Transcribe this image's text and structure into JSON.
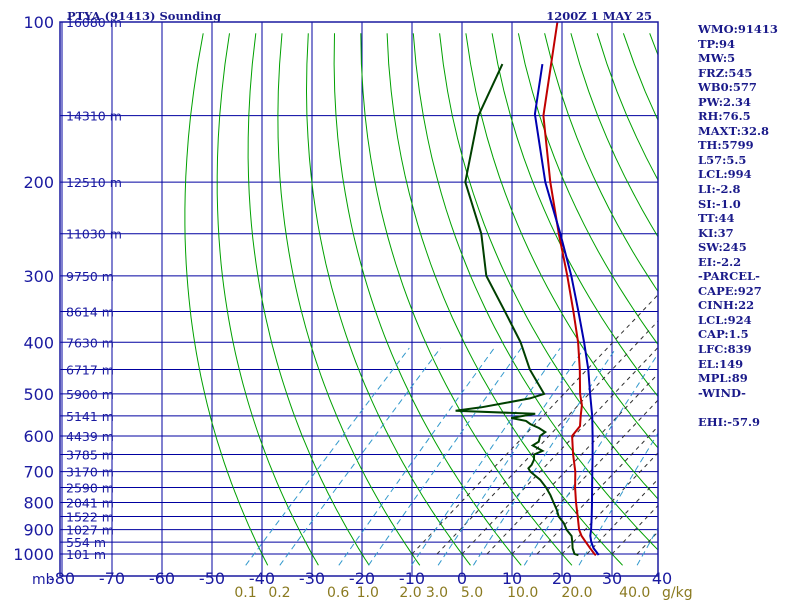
{
  "chart_data": {
    "type": "line",
    "title": "PTYA (91413) Sounding",
    "valid_time": "1200Z  1 MAY 25",
    "colors": {
      "frame": "#1a1aa0",
      "isotherm": "#0000a0",
      "isobar": "#0000a0",
      "dry_adiabat": "#00a000",
      "moist_adiabat": "#303030",
      "mixing_ratio": "#3399cc",
      "temperature": "#c00000",
      "dewpoint": "#004000",
      "parcel": "#0000b0",
      "axis_text": "#1a1aa0",
      "mixing_text": "#8a7a20"
    },
    "pressure_levels": [
      1000,
      900,
      800,
      700,
      600,
      500,
      400,
      300,
      200,
      100
    ],
    "pressure_tick_labels": [
      "1000",
      "900",
      "800",
      "700",
      "600",
      "500",
      "400",
      "300",
      "200",
      "100"
    ],
    "pressure_unit": "mb",
    "temperature_ticks": [
      "-80",
      "-70",
      "-60",
      "-50",
      "-40",
      "-30",
      "-20",
      "-10",
      "0",
      "10",
      "20",
      "30",
      "40"
    ],
    "height_labels": [
      {
        "p": 100,
        "text": "16080 m"
      },
      {
        "p": 150,
        "text": "14310 m"
      },
      {
        "p": 200,
        "text": "12510 m"
      },
      {
        "p": 250,
        "text": "11030 m"
      },
      {
        "p": 300,
        "text": "9750 m"
      },
      {
        "p": 350,
        "text": "8614 m"
      },
      {
        "p": 400,
        "text": "7630 m"
      },
      {
        "p": 450,
        "text": "6717 m"
      },
      {
        "p": 500,
        "text": "5900 m"
      },
      {
        "p": 550,
        "text": "5141 m"
      },
      {
        "p": 600,
        "text": "4439 m"
      },
      {
        "p": 650,
        "text": "3785 m"
      },
      {
        "p": 700,
        "text": "3170 m"
      },
      {
        "p": 750,
        "text": "2590 m"
      },
      {
        "p": 800,
        "text": "2041 m"
      },
      {
        "p": 850,
        "text": "1522 m"
      },
      {
        "p": 900,
        "text": "1027 m"
      },
      {
        "p": 950,
        "text": "554 m"
      },
      {
        "p": 1000,
        "text": "101 m"
      }
    ],
    "mixing_ratio_labels": [
      "0.1",
      "0.2",
      "0.6",
      "1.0",
      "2.0",
      "3.0",
      "5.0",
      "10.0",
      "20.0",
      "40.0"
    ],
    "mixing_ratio_unit": "g/kg",
    "temperature_profile": [
      {
        "p": 1005,
        "t": 27.0
      },
      {
        "p": 1000,
        "t": 26.5
      },
      {
        "p": 975,
        "t": 24.5
      },
      {
        "p": 950,
        "t": 22.5
      },
      {
        "p": 925,
        "t": 20.5
      },
      {
        "p": 900,
        "t": 18.8
      },
      {
        "p": 850,
        "t": 16.0
      },
      {
        "p": 800,
        "t": 13.0
      },
      {
        "p": 750,
        "t": 10.0
      },
      {
        "p": 700,
        "t": 7.0
      },
      {
        "p": 650,
        "t": 3.3
      },
      {
        "p": 600,
        "t": -0.4
      },
      {
        "p": 575,
        "t": -0.7
      },
      {
        "p": 550,
        "t": -2.5
      },
      {
        "p": 525,
        "t": -4.3
      },
      {
        "p": 500,
        "t": -6.8
      },
      {
        "p": 450,
        "t": -11.5
      },
      {
        "p": 400,
        "t": -17.0
      },
      {
        "p": 350,
        "t": -23.8
      },
      {
        "p": 300,
        "t": -31.8
      },
      {
        "p": 250,
        "t": -41.5
      },
      {
        "p": 200,
        "t": -53.0
      },
      {
        "p": 150,
        "t": -67.0
      },
      {
        "p": 100,
        "t": -82.0
      }
    ],
    "dewpoint_profile": [
      {
        "p": 1005,
        "t": 23.5
      },
      {
        "p": 1000,
        "t": 22.5
      },
      {
        "p": 975,
        "t": 21.0
      },
      {
        "p": 950,
        "t": 19.8
      },
      {
        "p": 925,
        "t": 18.5
      },
      {
        "p": 900,
        "t": 16.3
      },
      {
        "p": 875,
        "t": 14.5
      },
      {
        "p": 850,
        "t": 12.2
      },
      {
        "p": 825,
        "t": 10.5
      },
      {
        "p": 800,
        "t": 8.5
      },
      {
        "p": 775,
        "t": 6.5
      },
      {
        "p": 750,
        "t": 4.2
      },
      {
        "p": 725,
        "t": 1.5
      },
      {
        "p": 700,
        "t": -2.0
      },
      {
        "p": 690,
        "t": -3.0
      },
      {
        "p": 680,
        "t": -3.0
      },
      {
        "p": 665,
        "t": -3.5
      },
      {
        "p": 650,
        "t": -4.5
      },
      {
        "p": 640,
        "t": -3.5
      },
      {
        "p": 625,
        "t": -6.5
      },
      {
        "p": 615,
        "t": -6.0
      },
      {
        "p": 600,
        "t": -6.8
      },
      {
        "p": 590,
        "t": -6.5
      },
      {
        "p": 580,
        "t": -8.5
      },
      {
        "p": 570,
        "t": -11.0
      },
      {
        "p": 562,
        "t": -12.5
      },
      {
        "p": 555,
        "t": -16.0
      },
      {
        "p": 545,
        "t": -12.0
      },
      {
        "p": 538,
        "t": -28.5
      },
      {
        "p": 530,
        "t": -24.0
      },
      {
        "p": 520,
        "t": -20.0
      },
      {
        "p": 510,
        "t": -16.0
      },
      {
        "p": 500,
        "t": -14.0
      },
      {
        "p": 450,
        "t": -21.5
      },
      {
        "p": 400,
        "t": -28.5
      },
      {
        "p": 350,
        "t": -37.5
      },
      {
        "p": 300,
        "t": -48.0
      },
      {
        "p": 250,
        "t": -57.0
      },
      {
        "p": 200,
        "t": -70.0
      },
      {
        "p": 150,
        "t": -80.0
      },
      {
        "p": 120,
        "t": -85.0
      }
    ],
    "parcel_profile": [
      {
        "p": 1005,
        "t": 27.5
      },
      {
        "p": 1000,
        "t": 27.2
      },
      {
        "p": 975,
        "t": 25.2
      },
      {
        "p": 950,
        "t": 23.6
      },
      {
        "p": 924,
        "t": 22.2
      },
      {
        "p": 900,
        "t": 21.2
      },
      {
        "p": 850,
        "t": 18.8
      },
      {
        "p": 800,
        "t": 16.2
      },
      {
        "p": 750,
        "t": 13.4
      },
      {
        "p": 700,
        "t": 10.4
      },
      {
        "p": 650,
        "t": 7.2
      },
      {
        "p": 600,
        "t": 3.7
      },
      {
        "p": 550,
        "t": -0.2
      },
      {
        "p": 500,
        "t": -4.8
      },
      {
        "p": 450,
        "t": -9.8
      },
      {
        "p": 400,
        "t": -15.8
      },
      {
        "p": 350,
        "t": -22.8
      },
      {
        "p": 300,
        "t": -31.0
      },
      {
        "p": 250,
        "t": -41.2
      },
      {
        "p": 200,
        "t": -54.0
      },
      {
        "p": 149,
        "t": -69.0
      },
      {
        "p": 120,
        "t": -77.0
      }
    ]
  },
  "indices": {
    "wmo": "WMO:91413",
    "tp": "TP:94",
    "mw": "MW:5",
    "frz": "FRZ:545",
    "wb0": "WB0:577",
    "pw": "PW:2.34",
    "rh": "RH:76.5",
    "maxt": "MAXT:32.8",
    "th": "TH:5799",
    "l57": "L57:5.5",
    "lcl": "LCL:994",
    "li": "LI:-2.8",
    "si": "SI:-1.0",
    "tt": "TT:44",
    "ki": "KI:37",
    "sw": "SW:245",
    "ei": "EI:-2.2",
    "parcel_header": "-PARCEL-",
    "cape": "CAPE:927",
    "cinh": "CINH:22",
    "parcel_lcl": "LCL:924",
    "cap": "CAP:1.5",
    "lfc": "LFC:839",
    "el": "EL:149",
    "mpl": "MPL:89",
    "wind_header": "-WIND-",
    "ehi": "EHI:-57.9"
  }
}
